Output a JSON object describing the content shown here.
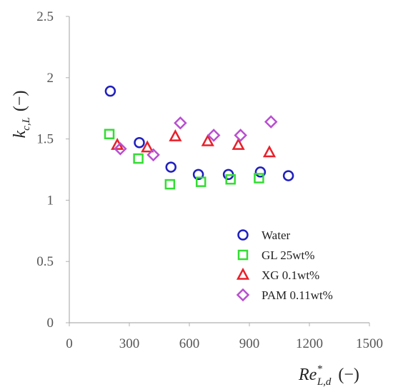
{
  "chart_data": {
    "type": "scatter",
    "xlabel": {
      "main": "Re",
      "sup": "*",
      "sub": "L,d",
      "unit": "(−)"
    },
    "ylabel": {
      "main": "k",
      "sub": "c,L",
      "unit": "(−)"
    },
    "xlim": [
      0,
      1500
    ],
    "ylim": [
      0,
      2.5
    ],
    "x_ticks": [
      "0",
      "300",
      "600",
      "900",
      "1200",
      "1500"
    ],
    "y_ticks": [
      "0",
      "0.5",
      "1",
      "1.5",
      "2",
      "2.5"
    ],
    "grid": false,
    "legend_position": "bottom-right",
    "series": [
      {
        "name": "Water",
        "marker": "circle",
        "color": "#1f1fbf",
        "points": [
          {
            "x": 205,
            "y": 1.89
          },
          {
            "x": 350,
            "y": 1.47
          },
          {
            "x": 508,
            "y": 1.27
          },
          {
            "x": 645,
            "y": 1.21
          },
          {
            "x": 795,
            "y": 1.21
          },
          {
            "x": 955,
            "y": 1.23
          },
          {
            "x": 1095,
            "y": 1.2
          }
        ]
      },
      {
        "name": "GL 25wt%",
        "marker": "square",
        "color": "#33dd33",
        "points": [
          {
            "x": 200,
            "y": 1.54
          },
          {
            "x": 345,
            "y": 1.34
          },
          {
            "x": 503,
            "y": 1.13
          },
          {
            "x": 658,
            "y": 1.15
          },
          {
            "x": 806,
            "y": 1.17
          },
          {
            "x": 948,
            "y": 1.18
          }
        ]
      },
      {
        "name": "XG 0.1wt%",
        "marker": "triangle",
        "color": "#e8202a",
        "points": [
          {
            "x": 240,
            "y": 1.45
          },
          {
            "x": 390,
            "y": 1.43
          },
          {
            "x": 530,
            "y": 1.52
          },
          {
            "x": 692,
            "y": 1.48
          },
          {
            "x": 845,
            "y": 1.45
          },
          {
            "x": 1000,
            "y": 1.39
          }
        ]
      },
      {
        "name": "PAM 0.11wt%",
        "marker": "diamond",
        "color": "#b84fd0",
        "points": [
          {
            "x": 255,
            "y": 1.42
          },
          {
            "x": 420,
            "y": 1.37
          },
          {
            "x": 555,
            "y": 1.63
          },
          {
            "x": 722,
            "y": 1.53
          },
          {
            "x": 856,
            "y": 1.53
          },
          {
            "x": 1008,
            "y": 1.64
          }
        ]
      }
    ]
  }
}
